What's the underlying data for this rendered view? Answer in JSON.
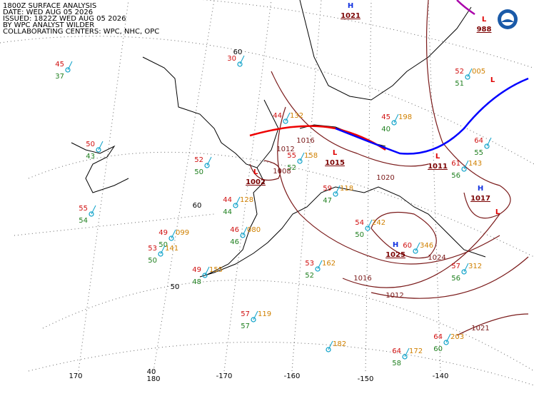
{
  "header": [
    "1800Z SURFACE ANALYSIS",
    "DATE: WED AUG 05 2026",
    "ISSUED: 1822Z WED AUG 05 2026",
    "BY WPC ANALYST WILDER",
    "COLLABORATING CENTERS: WPC, NHC, OPC"
  ],
  "longitudes": [
    "170",
    "180",
    "-170",
    "-160",
    "-150",
    "-140"
  ],
  "latitudes": [
    "40",
    "50",
    "60",
    "60"
  ],
  "pressure_centers": [
    {
      "symbol": "H",
      "kind": "high",
      "value": "1021"
    },
    {
      "symbol": "L",
      "kind": "low",
      "value": "988"
    },
    {
      "symbol": "L",
      "kind": "low",
      "value": "1015"
    },
    {
      "symbol": "L",
      "kind": "low",
      "value": "1002"
    },
    {
      "symbol": "L",
      "kind": "low",
      "value": "1011"
    },
    {
      "symbol": "H",
      "kind": "high",
      "value": "1017"
    },
    {
      "symbol": "H",
      "kind": "high",
      "value": "1025"
    },
    {
      "symbol": "L",
      "kind": "low"
    },
    {
      "symbol": "L",
      "kind": "low"
    }
  ],
  "isobar_labels": [
    "1016",
    "1008",
    "1012",
    "1016",
    "1012",
    "1021",
    "1024",
    "1020"
  ],
  "stations": [
    {
      "temp": "45",
      "dew": "37"
    },
    {
      "temp": "50",
      "dew": "43"
    },
    {
      "temp": "55",
      "dew": "54"
    },
    {
      "temp": "52",
      "dew": "50"
    },
    {
      "temp": "44",
      "dew": "44",
      "pressure": "128"
    },
    {
      "temp": "49",
      "dew": "50",
      "pressure": "099"
    },
    {
      "temp": "53",
      "dew": "50",
      "pressure": "141"
    },
    {
      "temp": "49",
      "dew": "48",
      "pressure": "155"
    },
    {
      "temp": "57",
      "dew": "57",
      "pressure": "119"
    },
    {
      "pressure": "182"
    },
    {
      "temp": "64",
      "dew": "58",
      "pressure": "172"
    },
    {
      "temp": "64",
      "dew": "60",
      "pressure": "203"
    },
    {
      "temp": "53",
      "dew": "52",
      "pressure": "162"
    },
    {
      "temp": "54",
      "dew": "50",
      "pressure": "242"
    },
    {
      "temp": "60",
      "pressure": "346"
    },
    {
      "temp": "57",
      "dew": "56",
      "pressure": "312"
    },
    {
      "temp": "52",
      "dew": "51",
      "pressure": "005"
    },
    {
      "temp": "44",
      "pressure": "132"
    },
    {
      "temp": "45",
      "dew": "40",
      "pressure": "198"
    },
    {
      "temp": "30"
    },
    {
      "temp": "46",
      "dew": "46",
      "pressure": "080"
    },
    {
      "temp": "61",
      "dew": "56",
      "pressure": "143"
    },
    {
      "temp": "64",
      "dew": "55"
    },
    {
      "temp": "59",
      "dew": "47",
      "pressure": "118"
    },
    {
      "temp": "55",
      "dew": "52",
      "pressure": "158"
    }
  ]
}
